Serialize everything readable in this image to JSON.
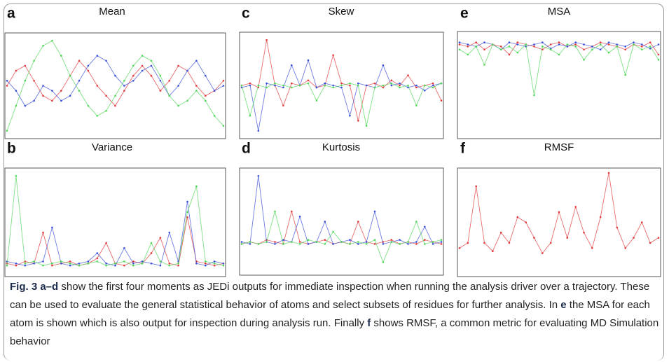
{
  "chart_data": [
    {
      "type": "line",
      "label": "a",
      "title": "Mean",
      "ylim": [
        0,
        100
      ],
      "series": [
        {
          "name": null,
          "color": "#e0393b",
          "values": [
            50,
            65,
            70,
            55,
            40,
            35,
            45,
            60,
            75,
            65,
            50,
            40,
            30,
            45,
            60,
            70,
            60,
            45,
            55,
            70,
            65,
            50,
            40,
            45,
            55
          ]
        },
        {
          "name": null,
          "color": "#3a4fd8",
          "values": [
            55,
            45,
            30,
            35,
            50,
            45,
            35,
            40,
            55,
            70,
            80,
            75,
            60,
            50,
            55,
            65,
            70,
            55,
            40,
            50,
            65,
            75,
            60,
            45,
            50
          ]
        },
        {
          "name": null,
          "color": "#52d65a",
          "values": [
            5,
            30,
            55,
            75,
            90,
            95,
            80,
            60,
            45,
            30,
            20,
            25,
            40,
            55,
            70,
            80,
            75,
            60,
            40,
            30,
            35,
            45,
            35,
            20,
            10
          ]
        }
      ]
    },
    {
      "type": "line",
      "label": "c",
      "title": "Skew",
      "ylim": [
        0,
        100
      ],
      "series": [
        {
          "name": null,
          "color": "#e0393b",
          "values": [
            50,
            52,
            48,
            95,
            50,
            30,
            52,
            50,
            55,
            48,
            50,
            80,
            52,
            50,
            15,
            50,
            52,
            48,
            55,
            50,
            60,
            48,
            50,
            52,
            35
          ]
        },
        {
          "name": null,
          "color": "#3a4fd8",
          "values": [
            48,
            50,
            5,
            52,
            50,
            48,
            70,
            50,
            75,
            48,
            52,
            50,
            48,
            20,
            52,
            50,
            48,
            70,
            50,
            52,
            48,
            50,
            45,
            50,
            52
          ]
        },
        {
          "name": null,
          "color": "#52d65a",
          "values": [
            50,
            20,
            50,
            48,
            52,
            50,
            48,
            50,
            52,
            35,
            50,
            48,
            50,
            52,
            50,
            10,
            48,
            50,
            52,
            48,
            50,
            30,
            50,
            48,
            52
          ]
        }
      ]
    },
    {
      "type": "line",
      "label": "e",
      "title": "MSA",
      "ylim": [
        0,
        100
      ],
      "series": [
        {
          "name": null,
          "color": "#e0393b",
          "values": [
            90,
            88,
            92,
            85,
            90,
            88,
            80,
            92,
            90,
            88,
            85,
            90,
            92,
            88,
            90,
            85,
            88,
            92,
            90,
            88,
            85,
            90,
            88,
            92,
            80
          ]
        },
        {
          "name": null,
          "color": "#3a4fd8",
          "values": [
            92,
            90,
            88,
            92,
            90,
            85,
            92,
            90,
            88,
            90,
            92,
            86,
            90,
            88,
            92,
            90,
            88,
            85,
            92,
            90,
            88,
            92,
            90,
            86,
            90
          ]
        },
        {
          "name": null,
          "color": "#52d65a",
          "values": [
            85,
            80,
            88,
            70,
            90,
            85,
            88,
            82,
            90,
            40,
            88,
            85,
            80,
            90,
            88,
            75,
            85,
            90,
            82,
            88,
            60,
            90,
            85,
            88,
            75
          ]
        }
      ]
    },
    {
      "type": "line",
      "label": "b",
      "title": "Variance",
      "ylim": [
        0,
        100
      ],
      "series": [
        {
          "name": null,
          "color": "#e0393b",
          "values": [
            10,
            8,
            12,
            10,
            40,
            8,
            10,
            12,
            8,
            10,
            15,
            30,
            10,
            8,
            12,
            10,
            20,
            35,
            10,
            8,
            55,
            12,
            10,
            8,
            10
          ]
        },
        {
          "name": null,
          "color": "#3a4fd8",
          "values": [
            12,
            10,
            8,
            10,
            12,
            45,
            10,
            8,
            10,
            12,
            20,
            10,
            8,
            25,
            10,
            12,
            10,
            8,
            40,
            12,
            70,
            10,
            8,
            12,
            10
          ]
        },
        {
          "name": null,
          "color": "#52d65a",
          "values": [
            8,
            95,
            10,
            12,
            8,
            10,
            12,
            10,
            8,
            10,
            12,
            8,
            10,
            12,
            8,
            10,
            30,
            12,
            8,
            10,
            60,
            85,
            12,
            10,
            8
          ]
        }
      ]
    },
    {
      "type": "line",
      "label": "d",
      "title": "Kurtosis",
      "ylim": [
        0,
        100
      ],
      "series": [
        {
          "name": null,
          "color": "#e0393b",
          "values": [
            28,
            30,
            28,
            32,
            30,
            28,
            60,
            30,
            28,
            30,
            32,
            28,
            30,
            28,
            50,
            30,
            28,
            30,
            32,
            28,
            30,
            28,
            32,
            30,
            28
          ]
        },
        {
          "name": null,
          "color": "#3a4fd8",
          "values": [
            30,
            28,
            95,
            30,
            28,
            32,
            30,
            55,
            28,
            30,
            50,
            28,
            30,
            32,
            28,
            30,
            60,
            28,
            30,
            32,
            28,
            30,
            45,
            28,
            30
          ]
        },
        {
          "name": null,
          "color": "#52d65a",
          "values": [
            28,
            30,
            28,
            30,
            60,
            28,
            30,
            28,
            32,
            30,
            28,
            40,
            30,
            28,
            30,
            28,
            32,
            10,
            30,
            28,
            30,
            50,
            28,
            30,
            32
          ]
        }
      ]
    },
    {
      "type": "line",
      "label": "f",
      "title": "RMSF",
      "ylim": [
        0,
        100
      ],
      "series": [
        {
          "name": null,
          "color": "#e0393b",
          "values": [
            25,
            30,
            85,
            30,
            22,
            40,
            30,
            55,
            50,
            35,
            20,
            30,
            60,
            35,
            65,
            40,
            25,
            55,
            98,
            45,
            25,
            35,
            50,
            30,
            35
          ]
        }
      ]
    }
  ],
  "caption": [
    {
      "text": "Fig. 3  a–d",
      "bold": true
    },
    {
      "text": " show the first four moments as JEDi outputs for immediate inspection when running the analysis driver over a trajectory. These can be used to evaluate the general statistical behavior of atoms and select subsets of residues for further analysis. In ",
      "bold": false
    },
    {
      "text": "e",
      "bold": true
    },
    {
      "text": " the MSA for each atom is shown which is also output for inspection during analysis run. Finally ",
      "bold": false
    },
    {
      "text": "f",
      "bold": true
    },
    {
      "text": " shows RMSF, a common metric for evaluating MD Simulation behavior",
      "bold": false
    }
  ]
}
